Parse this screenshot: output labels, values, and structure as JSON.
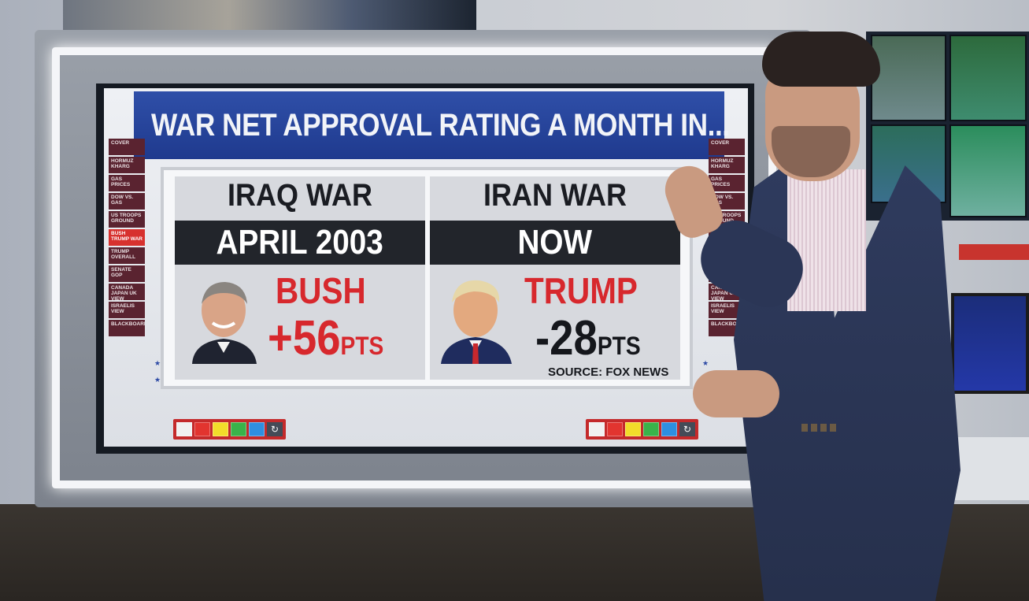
{
  "graphic": {
    "title": "WAR NET APPROVAL RATING A MONTH IN...",
    "left_panel": {
      "war": "IRAQ WAR",
      "date": "APRIL 2003",
      "leader": "BUSH",
      "score": "+56",
      "unit": "PTS"
    },
    "right_panel": {
      "war": "IRAN WAR",
      "date": "NOW",
      "leader": "TRUMP",
      "score": "-28",
      "unit": "PTS"
    },
    "source": "SOURCE: FOX NEWS"
  },
  "left_nav": [
    "COVER",
    "HORMUZ KHARG",
    "GAS PRICES",
    "DOW VS. GAS",
    "US TROOPS GROUND",
    "BUSH TRUMP WAR",
    "TRUMP OVERALL",
    "SENATE GOP",
    "CANADA JAPAN UK VIEW",
    "ISRAELIS VIEW",
    "BLACKBOARD"
  ],
  "left_nav_active_index": 5,
  "right_nav": [
    "COVER",
    "HORMUZ KHARG",
    "GAS PRICES",
    "DOW VS. GAS",
    "US TROOPS GROUND",
    "",
    "",
    "",
    "CANADA JAPAN UK VIEW",
    "ISRAELIS VIEW",
    "BLACKBOARD"
  ],
  "toolbar_colors": [
    "#f1f1f1",
    "#e2342f",
    "#f2dd2a",
    "#39b34a",
    "#2f8fe0"
  ],
  "reset_icon": "refresh-icon",
  "colors": {
    "title_bar": "#1f3a8e",
    "accent_red": "#d7282d",
    "dark_bar": "#22252b"
  }
}
